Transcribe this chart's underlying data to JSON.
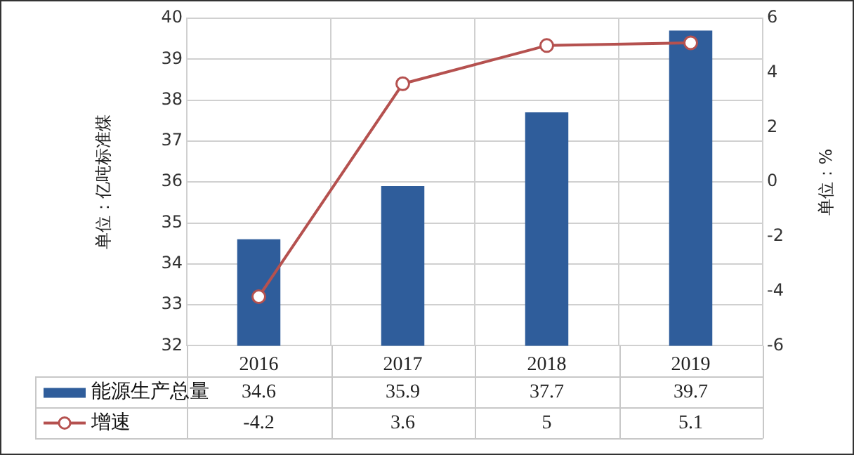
{
  "chart_data": {
    "type": "bar",
    "categories": [
      "2016",
      "2017",
      "2018",
      "2019"
    ],
    "series": [
      {
        "name": "能源生产总量",
        "color": "#2f5d9b",
        "values": [
          34.6,
          35.9,
          37.7,
          39.7
        ]
      },
      {
        "name": "增速",
        "type": "line",
        "axis": "y2",
        "color": "#b5514f",
        "values": [
          -4.2,
          3.6,
          5,
          5.1
        ]
      }
    ],
    "ylabel": "单位：亿吨标准煤",
    "y2label": "单位：%",
    "ylim": [
      32,
      40
    ],
    "yticks": [
      32,
      33,
      34,
      35,
      36,
      37,
      38,
      39,
      40
    ],
    "y2lim": [
      -6,
      6
    ],
    "y2ticks": [
      -6,
      -4,
      -2,
      0,
      2,
      4,
      6
    ],
    "grid": true,
    "legend": "bottom",
    "marker": "circle",
    "data_labels": true
  }
}
